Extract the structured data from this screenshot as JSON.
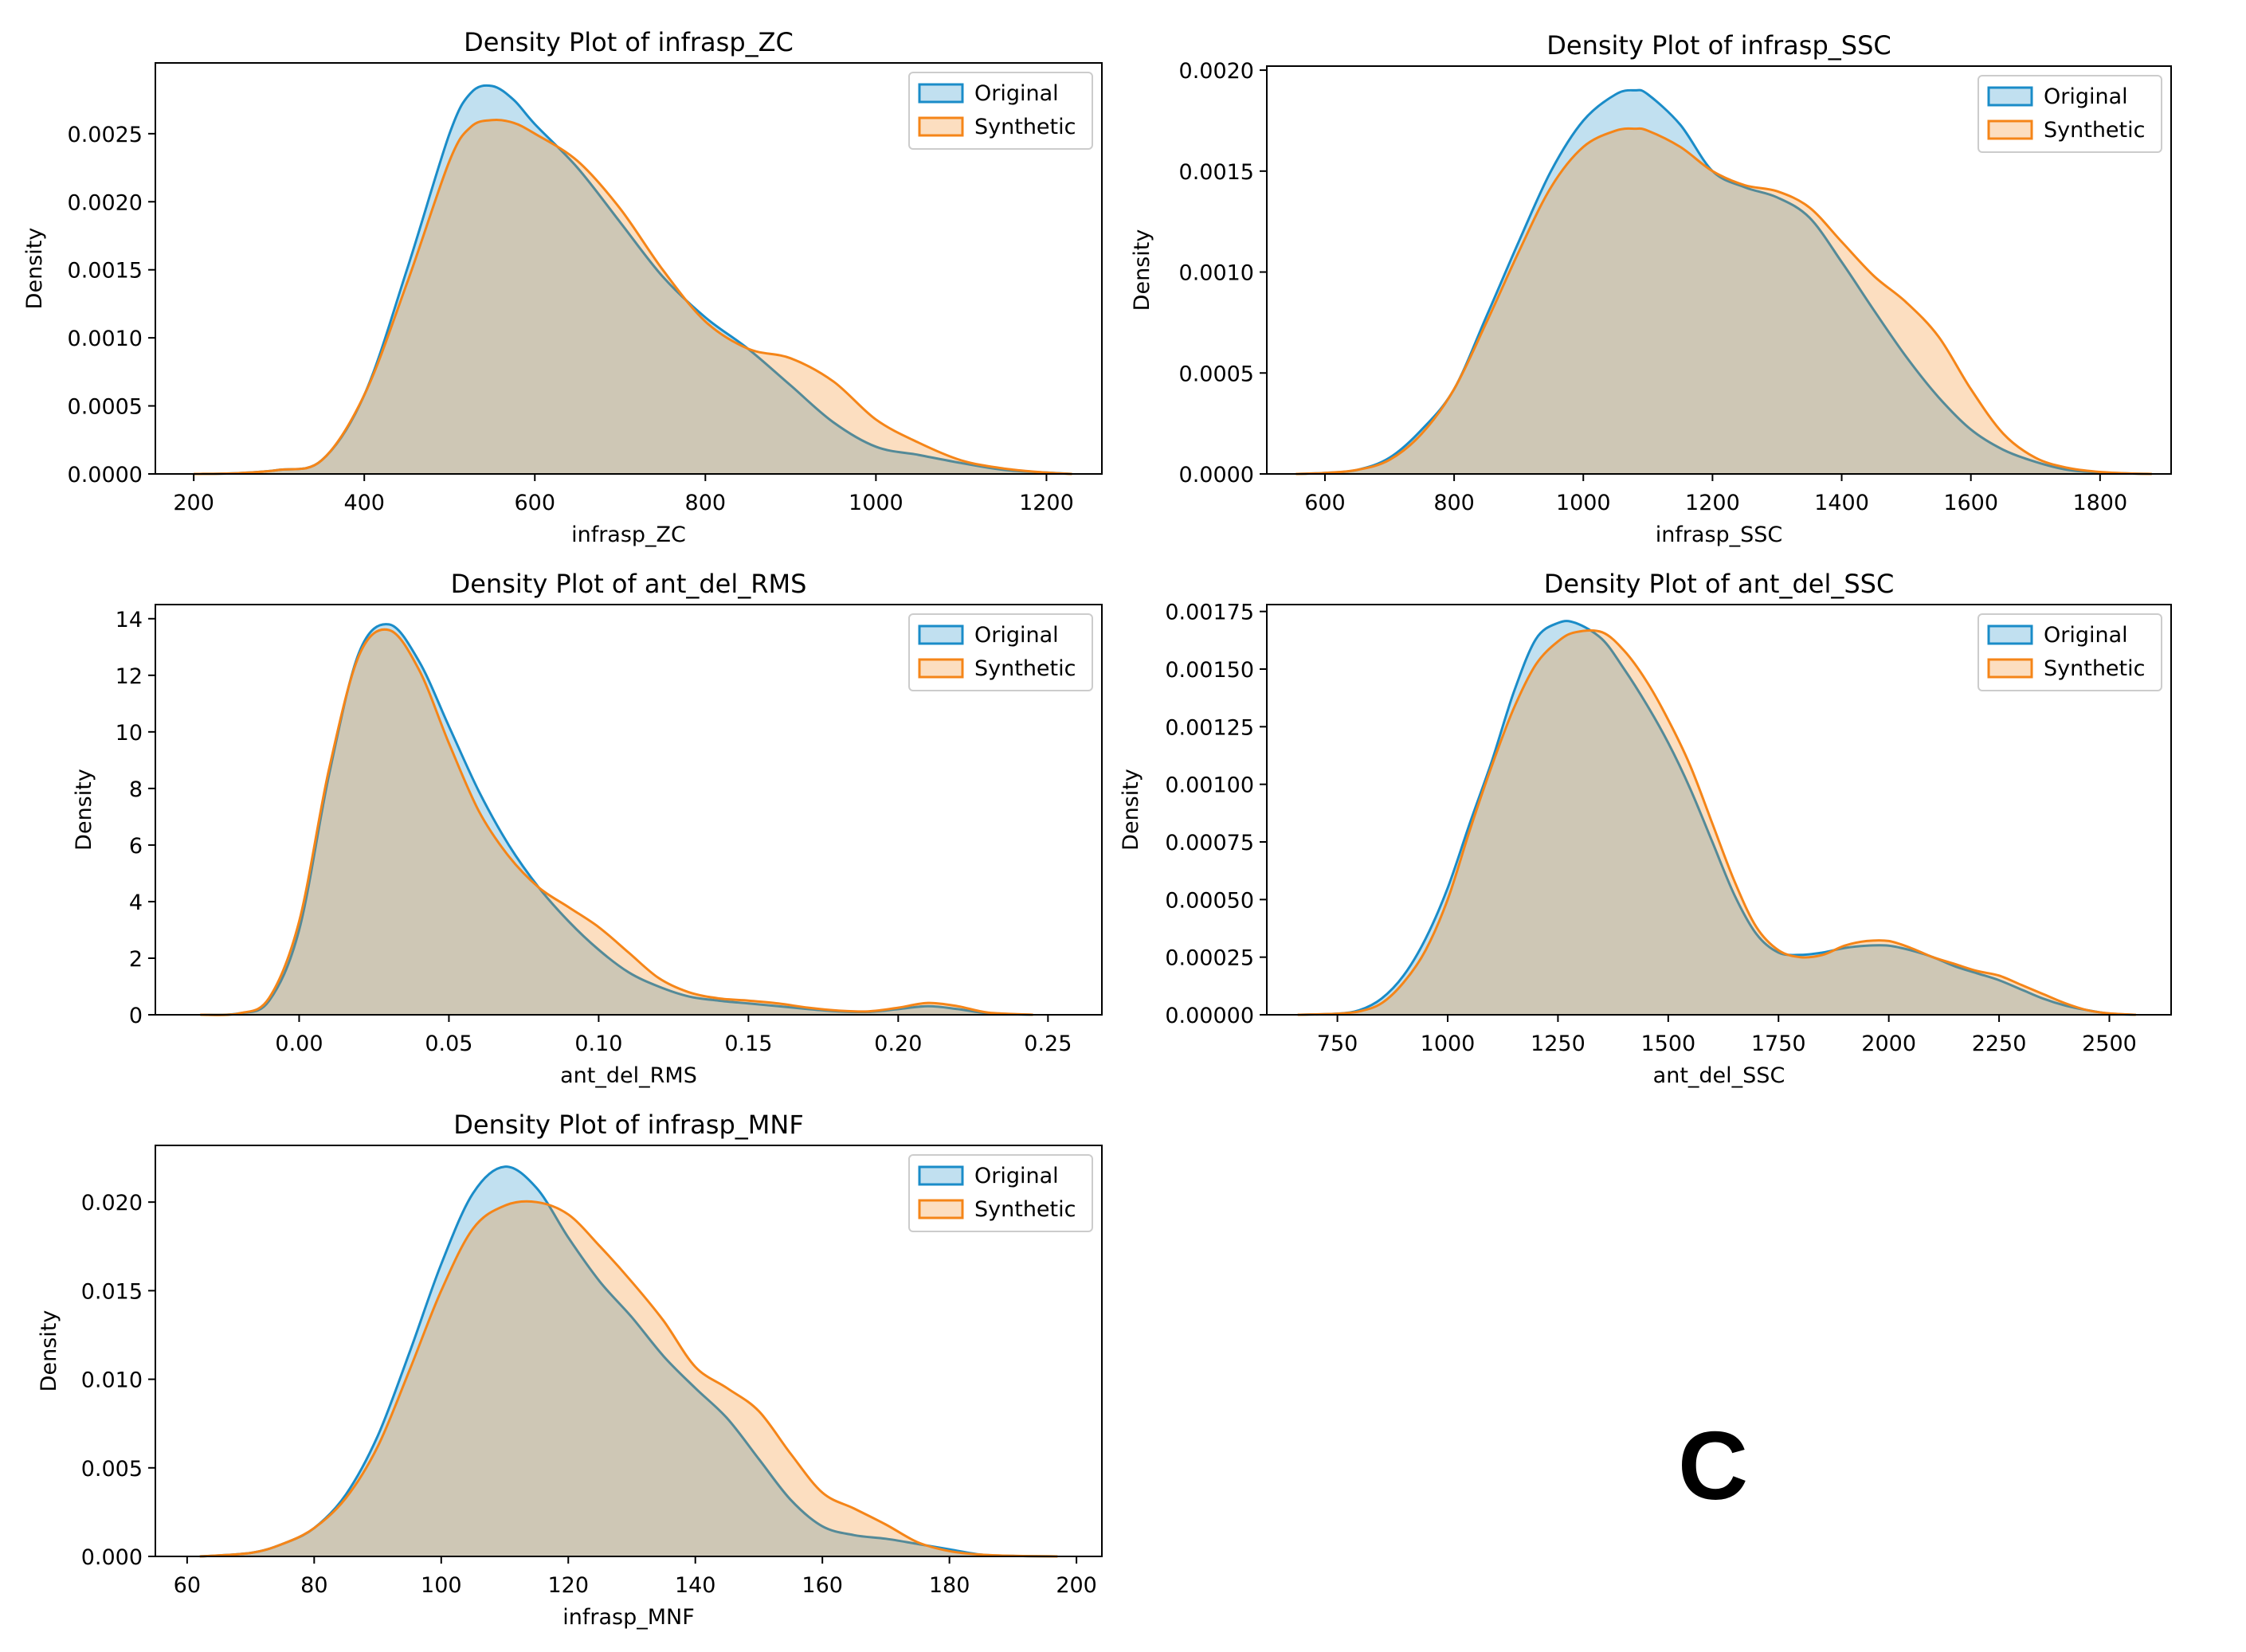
{
  "figure_label": "C",
  "colors": {
    "original": "#1a8cc8",
    "synthetic": "#f58518",
    "axes": "#000000"
  },
  "chart_data": [
    {
      "type": "area",
      "title": "Density Plot of infrasp_ZC",
      "xlabel": "infrasp_ZC",
      "ylabel": "Density",
      "xlim": [
        155,
        1265
      ],
      "ylim": [
        0,
        0.00302
      ],
      "xticks": [
        200,
        400,
        600,
        800,
        1000,
        1200
      ],
      "xtick_labels": [
        "200",
        "400",
        "600",
        "800",
        "1000",
        "1200"
      ],
      "yticks": [
        0,
        0.0005,
        0.001,
        0.0015,
        0.002,
        0.0025
      ],
      "ytick_labels": [
        "0.0000",
        "0.0005",
        "0.0010",
        "0.0015",
        "0.0020",
        "0.0025"
      ],
      "legend": {
        "location": "top-right",
        "entries": [
          "Original",
          "Synthetic"
        ]
      },
      "series": [
        {
          "name": "Original",
          "x": [
            200,
            250,
            300,
            350,
            400,
            450,
            500,
            525,
            550,
            575,
            600,
            650,
            700,
            750,
            800,
            850,
            900,
            950,
            1000,
            1050,
            1100,
            1150,
            1200,
            1230
          ],
          "y": [
            0,
            5e-06,
            3e-05,
            0.0001,
            0.00058,
            0.0015,
            0.0025,
            0.0028,
            0.00285,
            0.00275,
            0.00257,
            0.00225,
            0.00185,
            0.00145,
            0.00115,
            0.00092,
            0.00065,
            0.00038,
            0.0002,
            0.00014,
            8e-05,
            3e-05,
            1e-05,
            0
          ]
        },
        {
          "name": "Synthetic",
          "x": [
            200,
            250,
            300,
            350,
            400,
            450,
            500,
            525,
            550,
            575,
            600,
            650,
            700,
            750,
            800,
            850,
            900,
            950,
            1000,
            1050,
            1100,
            1150,
            1200,
            1230
          ],
          "y": [
            0,
            5e-06,
            3e-05,
            0.0001,
            0.00058,
            0.0014,
            0.0023,
            0.00255,
            0.0026,
            0.00258,
            0.0025,
            0.0023,
            0.00195,
            0.0015,
            0.00112,
            0.00092,
            0.00085,
            0.00068,
            0.0004,
            0.00023,
            0.0001,
            4e-05,
            1e-05,
            0
          ]
        }
      ]
    },
    {
      "type": "area",
      "title": "Density Plot of infrasp_SSC",
      "xlabel": "infrasp_SSC",
      "ylabel": "Density",
      "xlim": [
        510,
        1910
      ],
      "ylim": [
        0,
        0.00202
      ],
      "xticks": [
        600,
        800,
        1000,
        1200,
        1400,
        1600,
        1800
      ],
      "xtick_labels": [
        "600",
        "800",
        "1000",
        "1200",
        "1400",
        "1600",
        "1800"
      ],
      "yticks": [
        0,
        0.0005,
        0.001,
        0.0015,
        0.002
      ],
      "ytick_labels": [
        "0.0000",
        "0.0005",
        "0.0010",
        "0.0015",
        "0.0020"
      ],
      "legend": {
        "location": "top-right",
        "entries": [
          "Original",
          "Synthetic"
        ]
      },
      "series": [
        {
          "name": "Original",
          "x": [
            555,
            600,
            650,
            700,
            750,
            800,
            850,
            900,
            950,
            1000,
            1050,
            1080,
            1100,
            1150,
            1200,
            1250,
            1300,
            1350,
            1400,
            1450,
            1500,
            1550,
            1600,
            1650,
            1700,
            1750,
            1800,
            1850,
            1880
          ],
          "y": [
            0,
            5e-06,
            2e-05,
            8e-05,
            0.00022,
            0.00042,
            0.00078,
            0.00115,
            0.0015,
            0.00175,
            0.00188,
            0.0019,
            0.00188,
            0.00173,
            0.0015,
            0.00142,
            0.00137,
            0.00127,
            0.00105,
            0.00081,
            0.00058,
            0.00038,
            0.00022,
            0.00012,
            6e-05,
            2e-05,
            8e-06,
            2e-06,
            0
          ]
        },
        {
          "name": "Synthetic",
          "x": [
            555,
            600,
            650,
            700,
            750,
            800,
            850,
            900,
            950,
            1000,
            1050,
            1080,
            1100,
            1150,
            1200,
            1250,
            1300,
            1350,
            1400,
            1450,
            1500,
            1550,
            1600,
            1650,
            1700,
            1750,
            1800,
            1850,
            1880
          ],
          "y": [
            0,
            5e-06,
            2e-05,
            7e-05,
            0.0002,
            0.00042,
            0.00075,
            0.0011,
            0.00142,
            0.00162,
            0.0017,
            0.00171,
            0.0017,
            0.00162,
            0.0015,
            0.00143,
            0.0014,
            0.00132,
            0.00115,
            0.00098,
            0.00085,
            0.00068,
            0.00042,
            0.0002,
            8e-05,
            3e-05,
            1e-05,
            2e-06,
            0
          ]
        }
      ]
    },
    {
      "type": "area",
      "title": "Density Plot of ant_del_RMS",
      "xlabel": "ant_del_RMS",
      "ylabel": "Density",
      "xlim": [
        -0.048,
        0.268
      ],
      "ylim": [
        0,
        14.5
      ],
      "xticks": [
        0,
        0.05,
        0.1,
        0.15,
        0.2,
        0.25
      ],
      "xtick_labels": [
        "0.00",
        "0.05",
        "0.10",
        "0.15",
        "0.20",
        "0.25"
      ],
      "yticks": [
        0,
        2,
        4,
        6,
        8,
        10,
        12,
        14
      ],
      "ytick_labels": [
        "0",
        "2",
        "4",
        "6",
        "8",
        "10",
        "12",
        "14"
      ],
      "legend": {
        "location": "top-right",
        "entries": [
          "Original",
          "Synthetic"
        ]
      },
      "series": [
        {
          "name": "Original",
          "x": [
            -0.033,
            -0.02,
            -0.01,
            0,
            0.01,
            0.02,
            0.03,
            0.04,
            0.05,
            0.06,
            0.07,
            0.08,
            0.09,
            0.1,
            0.11,
            0.12,
            0.13,
            0.14,
            0.15,
            0.16,
            0.17,
            0.18,
            0.19,
            0.2,
            0.21,
            0.22,
            0.23,
            0.245
          ],
          "y": [
            0,
            0.05,
            0.5,
            3.0,
            8.5,
            12.8,
            13.8,
            12.5,
            10.2,
            7.9,
            6.0,
            4.5,
            3.3,
            2.3,
            1.5,
            1.0,
            0.65,
            0.5,
            0.4,
            0.3,
            0.2,
            0.12,
            0.1,
            0.2,
            0.3,
            0.2,
            0.05,
            0
          ]
        },
        {
          "name": "Synthetic",
          "x": [
            -0.033,
            -0.02,
            -0.01,
            0,
            0.01,
            0.02,
            0.03,
            0.04,
            0.05,
            0.06,
            0.07,
            0.08,
            0.09,
            0.1,
            0.11,
            0.12,
            0.13,
            0.14,
            0.15,
            0.16,
            0.17,
            0.18,
            0.19,
            0.2,
            0.21,
            0.22,
            0.23,
            0.245
          ],
          "y": [
            0,
            0.05,
            0.6,
            3.3,
            8.7,
            12.7,
            13.6,
            12.2,
            9.6,
            7.2,
            5.6,
            4.5,
            3.8,
            3.1,
            2.2,
            1.3,
            0.8,
            0.58,
            0.5,
            0.4,
            0.25,
            0.15,
            0.12,
            0.25,
            0.42,
            0.3,
            0.08,
            0
          ]
        }
      ]
    },
    {
      "type": "area",
      "title": "Density Plot of ant_del_SSC",
      "xlabel": "ant_del_SSC",
      "ylabel": "Density",
      "xlim": [
        590,
        2640
      ],
      "ylim": [
        0,
        0.00178
      ],
      "xticks": [
        750,
        1000,
        1250,
        1500,
        1750,
        2000,
        2250,
        2500
      ],
      "xtick_labels": [
        "750",
        "1000",
        "1250",
        "1500",
        "1750",
        "2000",
        "2250",
        "2500"
      ],
      "yticks": [
        0,
        0.00025,
        0.0005,
        0.00075,
        0.001,
        0.00125,
        0.0015,
        0.00175
      ],
      "ytick_labels": [
        "0.00000",
        "0.00025",
        "0.00050",
        "0.00075",
        "0.00100",
        "0.00125",
        "0.00150",
        "0.00175"
      ],
      "legend": {
        "location": "top-right",
        "entries": [
          "Original",
          "Synthetic"
        ]
      },
      "series": [
        {
          "name": "Original",
          "x": [
            660,
            750,
            800,
            850,
            900,
            950,
            1000,
            1050,
            1100,
            1150,
            1200,
            1250,
            1290,
            1350,
            1400,
            1450,
            1500,
            1550,
            1600,
            1650,
            1700,
            1750,
            1800,
            1850,
            1900,
            1950,
            2000,
            2050,
            2100,
            2150,
            2200,
            2250,
            2300,
            2350,
            2400,
            2450,
            2500,
            2560
          ],
          "y": [
            0,
            5e-06,
            2e-05,
            7e-05,
            0.00017,
            0.00033,
            0.00055,
            0.00083,
            0.0011,
            0.0014,
            0.00163,
            0.0017,
            0.0017,
            0.00163,
            0.0015,
            0.00135,
            0.00118,
            0.00098,
            0.00075,
            0.00052,
            0.00035,
            0.00027,
            0.00026,
            0.00027,
            0.00029,
            0.0003,
            0.0003,
            0.00028,
            0.00025,
            0.00021,
            0.00018,
            0.00015,
            0.00011,
            7e-05,
            4e-05,
            2e-05,
            5e-06,
            0
          ]
        },
        {
          "name": "Synthetic",
          "x": [
            660,
            750,
            800,
            850,
            900,
            950,
            1000,
            1050,
            1100,
            1150,
            1200,
            1250,
            1290,
            1350,
            1400,
            1450,
            1500,
            1550,
            1600,
            1650,
            1700,
            1750,
            1800,
            1850,
            1900,
            1950,
            2000,
            2050,
            2100,
            2150,
            2200,
            2250,
            2300,
            2350,
            2400,
            2450,
            2500,
            2560
          ],
          "y": [
            0,
            5e-06,
            1.5e-05,
            5e-05,
            0.00014,
            0.00028,
            0.0005,
            0.0008,
            0.00108,
            0.00133,
            0.00152,
            0.00162,
            0.00166,
            0.00166,
            0.00158,
            0.00145,
            0.00128,
            0.00108,
            0.00083,
            0.00058,
            0.00038,
            0.00028,
            0.00025,
            0.00026,
            0.0003,
            0.00032,
            0.00032,
            0.00029,
            0.00025,
            0.00022,
            0.00019,
            0.00017,
            0.00013,
            9e-05,
            5e-05,
            2e-05,
            6e-06,
            0
          ]
        }
      ]
    },
    {
      "type": "area",
      "title": "Density Plot of infrasp_MNF",
      "xlabel": "infrasp_MNF",
      "ylabel": "Density",
      "xlim": [
        55,
        204
      ],
      "ylim": [
        0,
        0.0232
      ],
      "xticks": [
        60,
        80,
        100,
        120,
        140,
        160,
        180,
        200
      ],
      "xtick_labels": [
        "60",
        "80",
        "100",
        "120",
        "140",
        "160",
        "180",
        "200"
      ],
      "yticks": [
        0,
        0.005,
        0.01,
        0.015,
        0.02
      ],
      "ytick_labels": [
        "0.000",
        "0.005",
        "0.010",
        "0.015",
        "0.020"
      ],
      "legend": {
        "location": "top-right",
        "entries": [
          "Original",
          "Synthetic"
        ]
      },
      "series": [
        {
          "name": "Original",
          "x": [
            62,
            70,
            75,
            80,
            85,
            90,
            95,
            100,
            105,
            110,
            115,
            120,
            125,
            130,
            135,
            140,
            145,
            150,
            155,
            160,
            165,
            170,
            175,
            180,
            185,
            190,
            197
          ],
          "y": [
            0,
            0.0002,
            0.0007,
            0.0016,
            0.0035,
            0.0068,
            0.0115,
            0.0165,
            0.0205,
            0.022,
            0.0208,
            0.018,
            0.0155,
            0.0135,
            0.0113,
            0.0095,
            0.0078,
            0.0055,
            0.0032,
            0.0017,
            0.0012,
            0.001,
            0.0007,
            0.0004,
            0.0001,
            3e-05,
            0
          ]
        },
        {
          "name": "Synthetic",
          "x": [
            62,
            70,
            75,
            80,
            85,
            90,
            95,
            100,
            105,
            110,
            115,
            120,
            125,
            130,
            135,
            140,
            145,
            150,
            155,
            160,
            165,
            170,
            175,
            180,
            185,
            190,
            197
          ],
          "y": [
            0,
            0.0002,
            0.0007,
            0.0016,
            0.0033,
            0.0062,
            0.0105,
            0.015,
            0.0185,
            0.0198,
            0.02,
            0.0193,
            0.0175,
            0.0155,
            0.0133,
            0.0107,
            0.0095,
            0.0082,
            0.0058,
            0.0036,
            0.0027,
            0.0018,
            0.0008,
            0.0003,
            0.0001,
            3e-05,
            0
          ]
        }
      ]
    }
  ]
}
